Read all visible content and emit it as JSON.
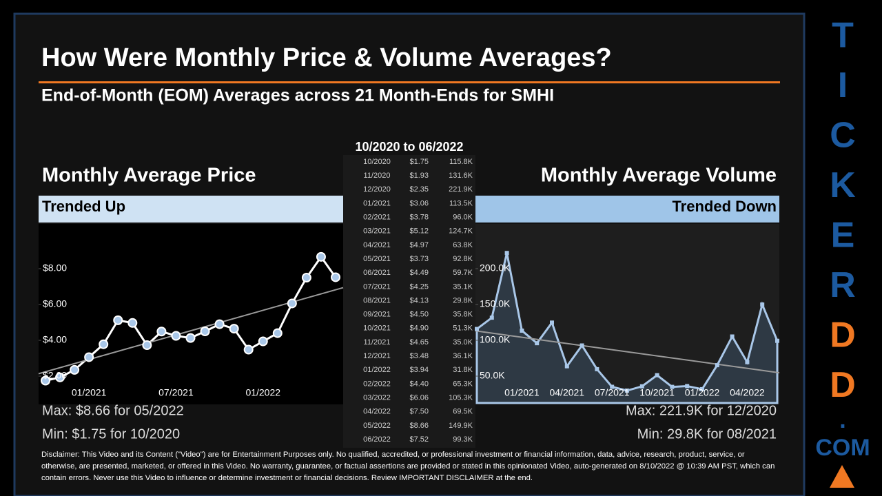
{
  "header": {
    "title": "How Were Monthly Price & Volume Averages?",
    "subtitle": "End-of-Month (EOM) Averages across 21 Month-Ends for SMHI"
  },
  "table": {
    "title": "10/2020 to 06/2022",
    "rows": [
      [
        "10/2020",
        "$1.75",
        "115.8K"
      ],
      [
        "11/2020",
        "$1.93",
        "131.6K"
      ],
      [
        "12/2020",
        "$2.35",
        "221.9K"
      ],
      [
        "01/2021",
        "$3.06",
        "113.5K"
      ],
      [
        "02/2021",
        "$3.78",
        "96.0K"
      ],
      [
        "03/2021",
        "$5.12",
        "124.7K"
      ],
      [
        "04/2021",
        "$4.97",
        "63.8K"
      ],
      [
        "05/2021",
        "$3.73",
        "92.8K"
      ],
      [
        "06/2021",
        "$4.49",
        "59.7K"
      ],
      [
        "07/2021",
        "$4.25",
        "35.1K"
      ],
      [
        "08/2021",
        "$4.13",
        "29.8K"
      ],
      [
        "09/2021",
        "$4.50",
        "35.8K"
      ],
      [
        "10/2021",
        "$4.90",
        "51.3K"
      ],
      [
        "11/2021",
        "$4.65",
        "35.0K"
      ],
      [
        "12/2021",
        "$3.48",
        "36.1K"
      ],
      [
        "01/2022",
        "$3.94",
        "31.8K"
      ],
      [
        "02/2022",
        "$4.40",
        "65.3K"
      ],
      [
        "03/2022",
        "$6.06",
        "105.3K"
      ],
      [
        "04/2022",
        "$7.50",
        "69.5K"
      ],
      [
        "05/2022",
        "$8.66",
        "149.9K"
      ],
      [
        "06/2022",
        "$7.52",
        "99.3K"
      ]
    ]
  },
  "chart_data": [
    {
      "type": "line",
      "title": "Monthly Average Price",
      "annotation": "Trended Up",
      "color": "#a9c7e8",
      "categories": [
        null,
        null,
        null,
        "01/2021",
        null,
        null,
        null,
        null,
        null,
        "07/2021",
        null,
        null,
        null,
        null,
        null,
        "01/2022",
        null,
        null,
        null,
        null,
        null
      ],
      "values": [
        1.75,
        1.93,
        2.35,
        3.06,
        3.78,
        5.12,
        4.97,
        3.73,
        4.49,
        4.25,
        4.13,
        4.5,
        4.9,
        4.65,
        3.48,
        3.94,
        4.4,
        6.06,
        7.5,
        8.66,
        7.52
      ],
      "ylim": [
        0.5,
        10.5
      ],
      "yticks": [
        {
          "value": 2,
          "label": "$2.00"
        },
        {
          "value": 4,
          "label": "$4.00"
        },
        {
          "value": 6,
          "label": "$6.00"
        },
        {
          "value": 8,
          "label": "$8.00"
        }
      ],
      "notes": [
        "Max: $8.66 for 05/2022",
        "Min: $1.75 for 10/2020"
      ]
    },
    {
      "type": "area",
      "title": "Monthly Average Volume",
      "annotation": "Trended Down",
      "color": "#a9c7e8",
      "categories": [
        null,
        null,
        null,
        "01/2021",
        null,
        null,
        "04/2021",
        null,
        null,
        "07/2021",
        null,
        null,
        "10/2021",
        null,
        null,
        "01/2022",
        null,
        null,
        "04/2022",
        null,
        null
      ],
      "values": [
        115.8,
        131.6,
        221.9,
        113.5,
        96.0,
        124.7,
        63.8,
        92.8,
        59.7,
        35.1,
        29.8,
        35.8,
        51.3,
        35.0,
        36.1,
        31.8,
        65.3,
        105.3,
        69.5,
        149.9,
        99.3
      ],
      "ylim": [
        12.5,
        262.5
      ],
      "yticks": [
        {
          "value": 50,
          "label": "50.0K"
        },
        {
          "value": 100,
          "label": "100.0K"
        },
        {
          "value": 150,
          "label": "150.0K"
        },
        {
          "value": 200,
          "label": "200.0K"
        }
      ],
      "notes": [
        "Max: 221.9K for 12/2020",
        "Min: 29.8K for 08/2021"
      ]
    }
  ],
  "disclaimer": "Disclaimer: This Video and its Content (\"Video\") are for Entertainment Purposes only. No qualified, accredited, or professional investment or financial information, data, advice, research, product, service, or otherwise, are presented, marketed, or offered in this Video. No warranty, guarantee, or factual assertions are provided or stated in this opinionated Video, auto-generated on 8/10/2022 @ 10:39 AM PST, which can contain errors. Never use this Video to influence or determine investment or financial decisions. Review IMPORTANT DISCLAIMER at the end.",
  "brand": [
    "T",
    "I",
    "C",
    "K",
    "E",
    "R",
    "D",
    "D",
    ".",
    "COM"
  ]
}
